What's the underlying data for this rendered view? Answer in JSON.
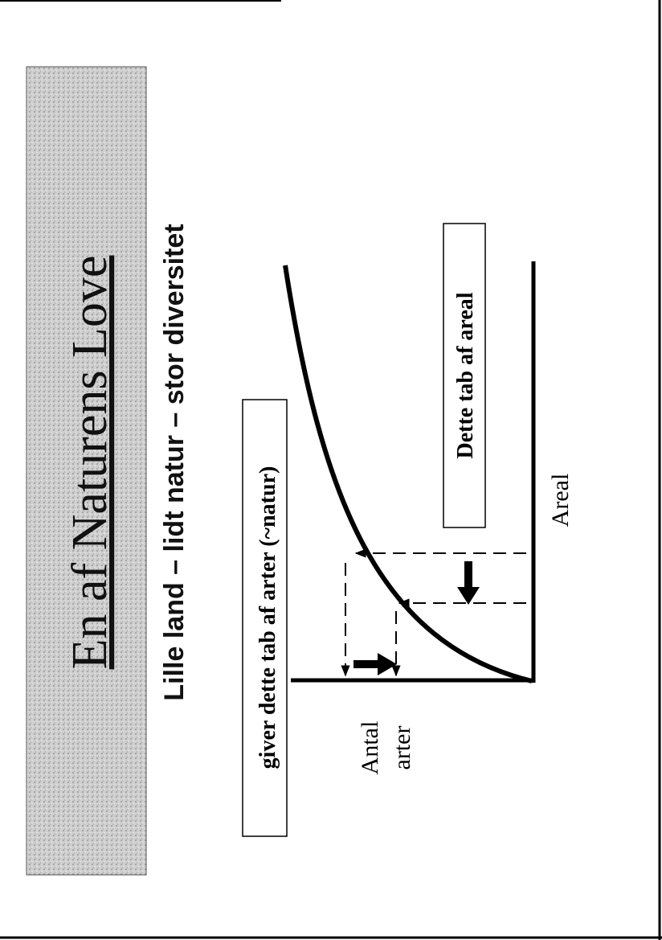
{
  "title": "En af Naturens Love",
  "subtitle": "Lille land – lidt natur – stor diversitet",
  "diagram": {
    "species_box": "giver dette tab af arter (~natur)",
    "area_box": "Dette tab af areal",
    "species_axis_label": [
      "Antal",
      "arter"
    ],
    "area_axis_label": "Areal"
  }
}
